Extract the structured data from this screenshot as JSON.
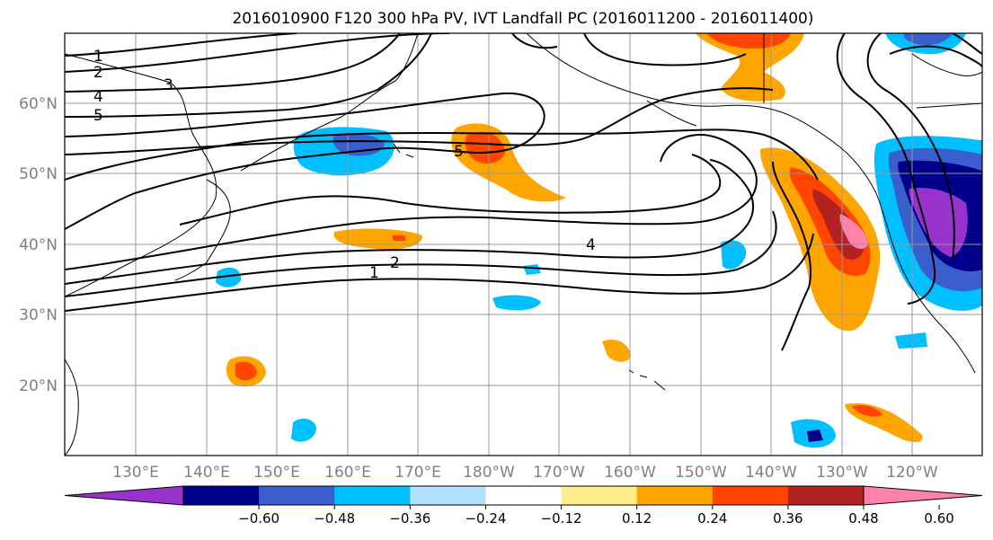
{
  "title": "2016010900 F120 300 hPa PV, IVT Landfall PC (2016011200 - 2016011400)",
  "lat_labels": [
    "60°N",
    "50°N",
    "40°N",
    "30°N",
    "20°N"
  ],
  "lon_labels": [
    "130°E",
    "140°E",
    "150°E",
    "160°E",
    "170°E",
    "180°W",
    "170°W",
    "160°W",
    "150°W",
    "140°W",
    "130°W",
    "120°W"
  ],
  "contour_labels": [
    "1",
    "2",
    "4",
    "5",
    "3",
    "5",
    "4",
    "2",
    "1"
  ],
  "colorbar": {
    "colors": [
      "#9932CC",
      "#00008B",
      "#3A5FCD",
      "#00BFFF",
      "#B0E2FF",
      "#FFFFFF",
      "#FFEC8B",
      "#FFA500",
      "#FF4500",
      "#B22222",
      "#FF82AB"
    ],
    "ticks": [
      "−0.60",
      "−0.48",
      "−0.36",
      "−0.24",
      "−0.12",
      "0.12",
      "0.24",
      "0.36",
      "0.48",
      "0.60"
    ]
  }
}
